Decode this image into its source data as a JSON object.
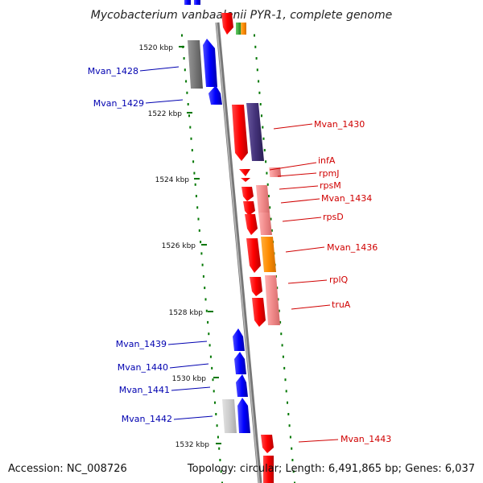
{
  "title": "Mycobacterium vanbaalenii PYR-1, complete genome",
  "accession": "Accession: NC_008726",
  "topology_summary": "Topology: circular; Length: 6,491,865 bp; Genes: 6,037",
  "scale_ticks": [
    "1520 kbp",
    "1522 kbp",
    "1524 kbp",
    "1526 kbp",
    "1528 kbp",
    "1530 kbp",
    "1532 kbp"
  ],
  "colors": {
    "forward_cds": "#ff0000",
    "reverse_cds": "#0000ff",
    "forward_pale": "#f08080",
    "dark_blue_purple": "#44337a",
    "grey": "#777777",
    "light_grey": "#cccccc",
    "orange": "#ff8c00",
    "green": "#33aa33",
    "backbone": "#888888",
    "left_label": "#0000b0",
    "right_label": "#d00000",
    "dotted": "#007700"
  },
  "genes_left": [
    {
      "label": "Mvan_1428"
    },
    {
      "label": "Mvan_1429"
    },
    {
      "label": "Mvan_1439"
    },
    {
      "label": "Mvan_1440"
    },
    {
      "label": "Mvan_1441"
    },
    {
      "label": "Mvan_1442"
    }
  ],
  "genes_right": [
    {
      "label": "Mvan_1430"
    },
    {
      "label": "infA"
    },
    {
      "label": "rpmJ"
    },
    {
      "label": "rpsM"
    },
    {
      "label": "Mvan_1434"
    },
    {
      "label": "rpsD"
    },
    {
      "label": "Mvan_1436"
    },
    {
      "label": "rplQ"
    },
    {
      "label": "truA"
    },
    {
      "label": "Mvan_1443"
    }
  ]
}
